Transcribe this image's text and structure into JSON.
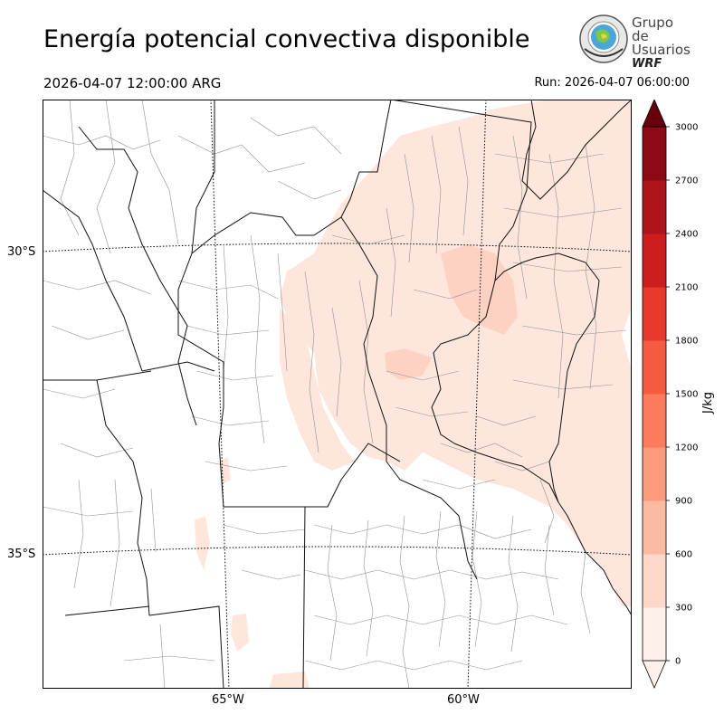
{
  "header": {
    "title": "Energía potencial convectiva disponible",
    "valid_time": "2026-04-07 12:00:00 ARG",
    "run_time": "Run: 2026-04-07 06:00:00"
  },
  "logo": {
    "line1": "Grupo de",
    "line2": "Usuarios",
    "line3": "WRF"
  },
  "map": {
    "lat_labels": [
      "30°S",
      "35°S"
    ],
    "lon_labels": [
      "65°W",
      "60°W"
    ]
  },
  "colorbar": {
    "label": "J/kg",
    "ticks": [
      "0",
      "300",
      "600",
      "900",
      "1200",
      "1500",
      "1800",
      "2100",
      "2400",
      "2700",
      "3000"
    ],
    "colors": [
      "#fff0ea",
      "#fdd8c8",
      "#fcbba0",
      "#fc9a7c",
      "#fb7b5c",
      "#f65a40",
      "#e8392c",
      "#cd1d1e",
      "#ae141a",
      "#8b0a15",
      "#67000d"
    ],
    "extend": "both"
  },
  "field": {
    "shading": "#fee6dc",
    "shading_strong": "#fdd2c2"
  }
}
